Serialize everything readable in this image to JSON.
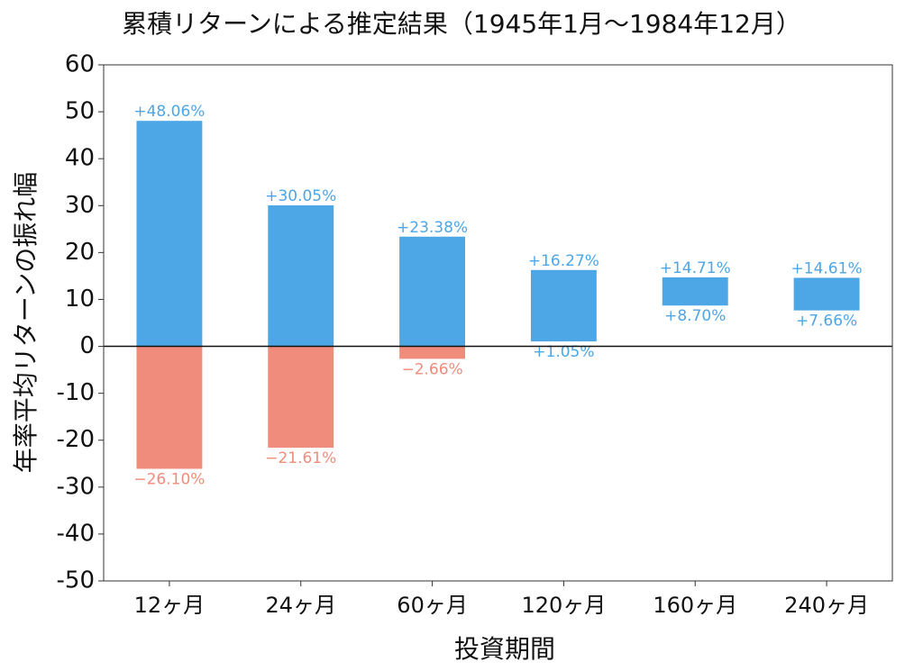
{
  "chart_data": {
    "type": "range_bar",
    "title": "累積リターンによる推定結果（1945年1月～1984年12月）",
    "xlabel": "投資期間",
    "ylabel": "年率平均リターンの振れ幅",
    "categories": [
      "12ヶ月",
      "24ヶ月",
      "60ヶ月",
      "120ヶ月",
      "160ヶ月",
      "240ヶ月"
    ],
    "high": {
      "values": [
        48.06,
        30.05,
        23.38,
        16.27,
        14.71,
        14.61
      ],
      "value_labels": [
        "+48.06%",
        "+30.05%",
        "+23.38%",
        "+16.27%",
        "+14.71%",
        "+14.61%"
      ]
    },
    "low": {
      "values": [
        -26.1,
        -21.61,
        -2.66,
        1.05,
        8.7,
        7.66
      ],
      "value_labels": [
        "−26.10%",
        "−21.61%",
        "−2.66%",
        "+1.05%",
        "+8.70%",
        "+7.66%"
      ]
    },
    "positive_color": "#4da6e6",
    "negative_color": "#f08c7c",
    "ylim": [
      -50,
      60
    ],
    "yticks": [
      60,
      50,
      40,
      30,
      20,
      10,
      0,
      -10,
      -20,
      -30,
      -40,
      -50
    ]
  }
}
